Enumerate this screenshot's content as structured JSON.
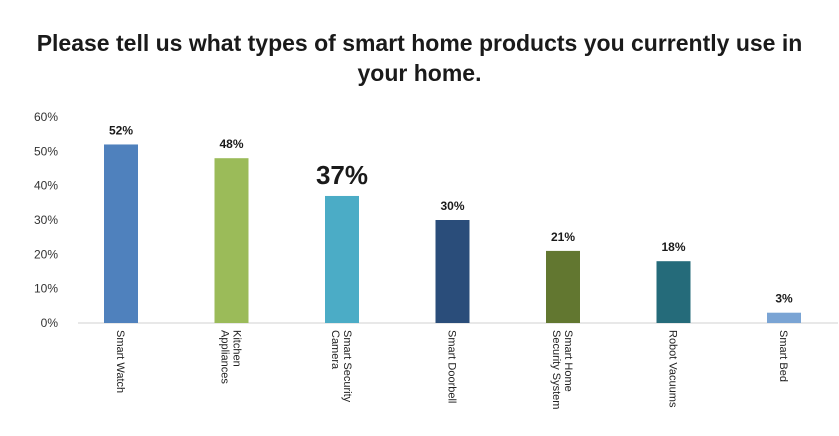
{
  "chart_data": {
    "type": "bar",
    "title_lines": [
      "Please tell us what types of smart home products you currently use in",
      "your home."
    ],
    "xlabel": "",
    "ylabel": "",
    "ylim": [
      0,
      60
    ],
    "yticks": [
      "0%",
      "10%",
      "20%",
      "30%",
      "40%",
      "50%",
      "60%"
    ],
    "y_tick_values": [
      0,
      10,
      20,
      30,
      40,
      50,
      60
    ],
    "grid": false,
    "legend": "none",
    "categories": [
      [
        "Smart Watch"
      ],
      [
        "Kitchen",
        "Appliances"
      ],
      [
        "Smart Security",
        "Camera"
      ],
      [
        "Smart Doorbell"
      ],
      [
        "Smart Home",
        "Security System"
      ],
      [
        "Robot Vacuums"
      ],
      [
        "Smart Bed"
      ]
    ],
    "values": [
      52,
      48,
      37,
      30,
      21,
      18,
      3
    ],
    "value_labels": [
      "52%",
      "48%",
      "37%",
      "30%",
      "21%",
      "18%",
      "3%"
    ],
    "highlighted_index": 2,
    "colors": [
      "#4f81bd",
      "#9bbb59",
      "#4bacc6",
      "#2a4d7a",
      "#627730",
      "#256b7a",
      "#7aa4d4"
    ]
  }
}
